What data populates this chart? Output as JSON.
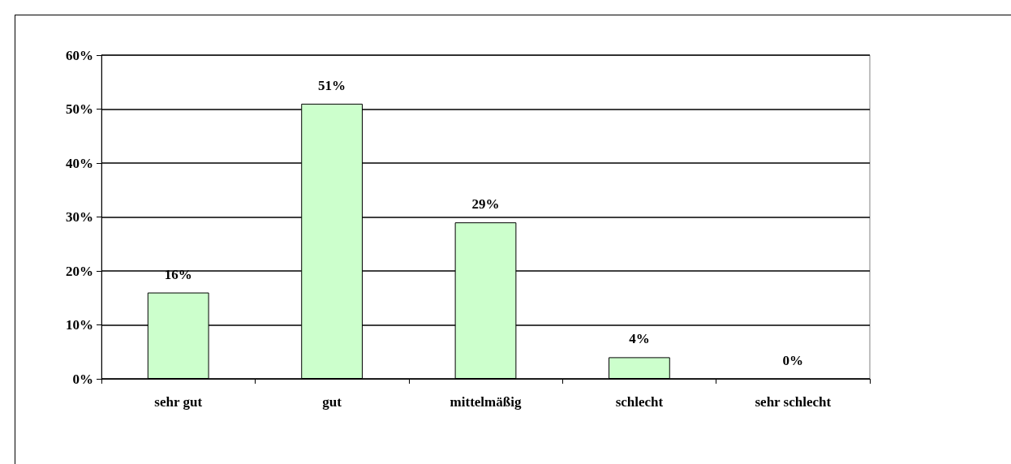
{
  "chart_data": {
    "type": "bar",
    "categories": [
      "sehr gut",
      "gut",
      "mittelmäßig",
      "schlecht",
      "sehr schlecht"
    ],
    "values": [
      16,
      51,
      29,
      4,
      0
    ],
    "value_labels": [
      "16%",
      "51%",
      "29%",
      "4%",
      "0%"
    ],
    "color": "#ccffcc",
    "ylim": [
      0,
      60
    ],
    "yticks": [
      {
        "value": 0,
        "label": "0%"
      },
      {
        "value": 10,
        "label": "10%"
      },
      {
        "value": 20,
        "label": "20%"
      },
      {
        "value": 30,
        "label": "30%"
      },
      {
        "value": 40,
        "label": "40%"
      },
      {
        "value": 50,
        "label": "50%"
      },
      {
        "value": 60,
        "label": "60%"
      }
    ],
    "grid": "y"
  }
}
